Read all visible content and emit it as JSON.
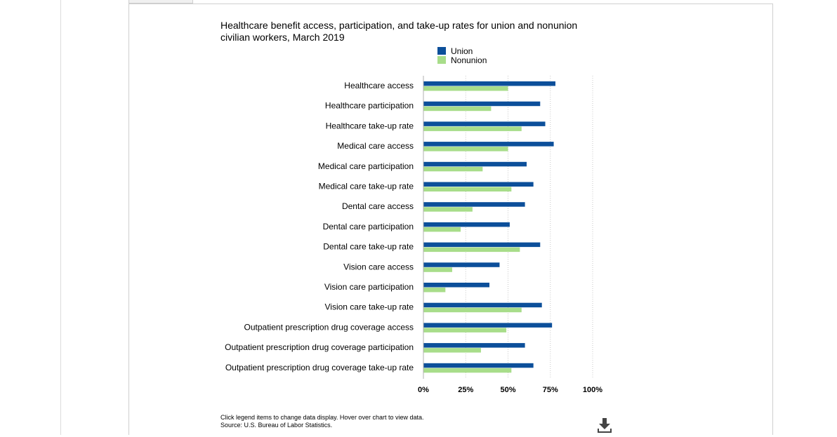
{
  "chart_data": {
    "type": "bar",
    "orientation": "horizontal",
    "title": "Healthcare benefit access, participation, and take-up rates for union and nonunion civilian workers, March 2019",
    "categories": [
      "Healthcare access",
      "Healthcare participation",
      "Healthcare take-up rate",
      "Medical care access",
      "Medical care participation",
      "Medical care take-up rate",
      "Dental care access",
      "Dental care participation",
      "Dental care take-up rate",
      "Vision care access",
      "Vision care participation",
      "Vision care take-up rate",
      "Outpatient prescription drug coverage access",
      "Outpatient prescription drug coverage participation",
      "Outpatient prescription drug coverage take-up rate"
    ],
    "series": [
      {
        "name": "Union",
        "color": "#0c4f9a",
        "values": [
          78,
          69,
          72,
          77,
          61,
          65,
          60,
          51,
          69,
          45,
          39,
          70,
          76,
          60,
          65
        ]
      },
      {
        "name": "Nonunion",
        "color": "#a8dd8a",
        "values": [
          50,
          40,
          58,
          50,
          35,
          52,
          29,
          22,
          57,
          17,
          13,
          58,
          49,
          34,
          52
        ]
      }
    ],
    "xlim": [
      0,
      100
    ],
    "xticks": [
      "0%",
      "25%",
      "50%",
      "75%",
      "100%"
    ],
    "grid": true,
    "legend": "top"
  },
  "footer": {
    "note": "Click legend items to change data display. Hover over chart to view data.",
    "source": "Source: U.S. Bureau of Labor Statistics."
  }
}
